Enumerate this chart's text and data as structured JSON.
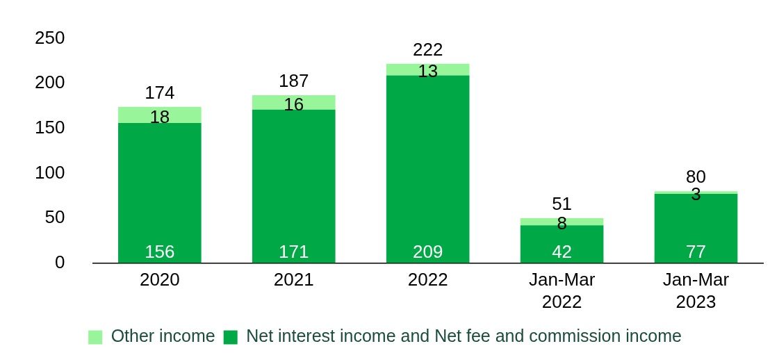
{
  "chart_data": {
    "type": "bar",
    "stacked": true,
    "categories": [
      "2020",
      "2021",
      "2022",
      "Jan-Mar 2022",
      "Jan-Mar 2023"
    ],
    "series": [
      {
        "name": "Net interest income and Net fee and commission income",
        "color": "#00a846",
        "values": [
          156,
          171,
          209,
          42,
          77
        ]
      },
      {
        "name": "Other income",
        "color": "#98f59a",
        "values": [
          18,
          16,
          13,
          8,
          3
        ]
      }
    ],
    "totals": [
      "174",
      "187",
      "222",
      "51",
      "80"
    ],
    "ylim": [
      0,
      250
    ],
    "yticks": [
      0,
      50,
      100,
      150,
      200,
      250
    ],
    "data_labels": true,
    "grid": false,
    "legend": "bottom"
  }
}
